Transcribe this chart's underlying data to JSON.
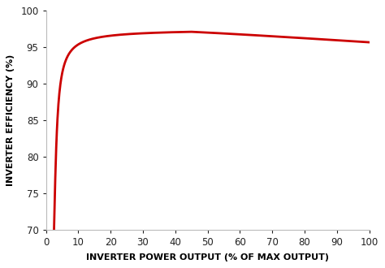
{
  "xlabel": "INVERTER POWER OUTPUT (% OF MAX OUTPUT)",
  "ylabel": "INVERTER EFFICIENCY (%)",
  "xlim": [
    0,
    100
  ],
  "ylim": [
    70,
    100
  ],
  "xticks": [
    0,
    10,
    20,
    30,
    40,
    50,
    60,
    70,
    80,
    90,
    100
  ],
  "yticks": [
    70,
    75,
    80,
    85,
    90,
    95,
    100
  ],
  "line_color": "#cc0000",
  "line_width": 2.0,
  "bg_color": "#ffffff",
  "xlabel_fontsize": 8.0,
  "ylabel_fontsize": 8.0,
  "tick_fontsize": 8.5,
  "curve_start_x": 2.5,
  "curve_start_y": 70.0,
  "curve_peak_x": 45.0,
  "curve_peak_y": 97.2,
  "curve_end_x": 100.0,
  "curve_end_y": 95.6
}
